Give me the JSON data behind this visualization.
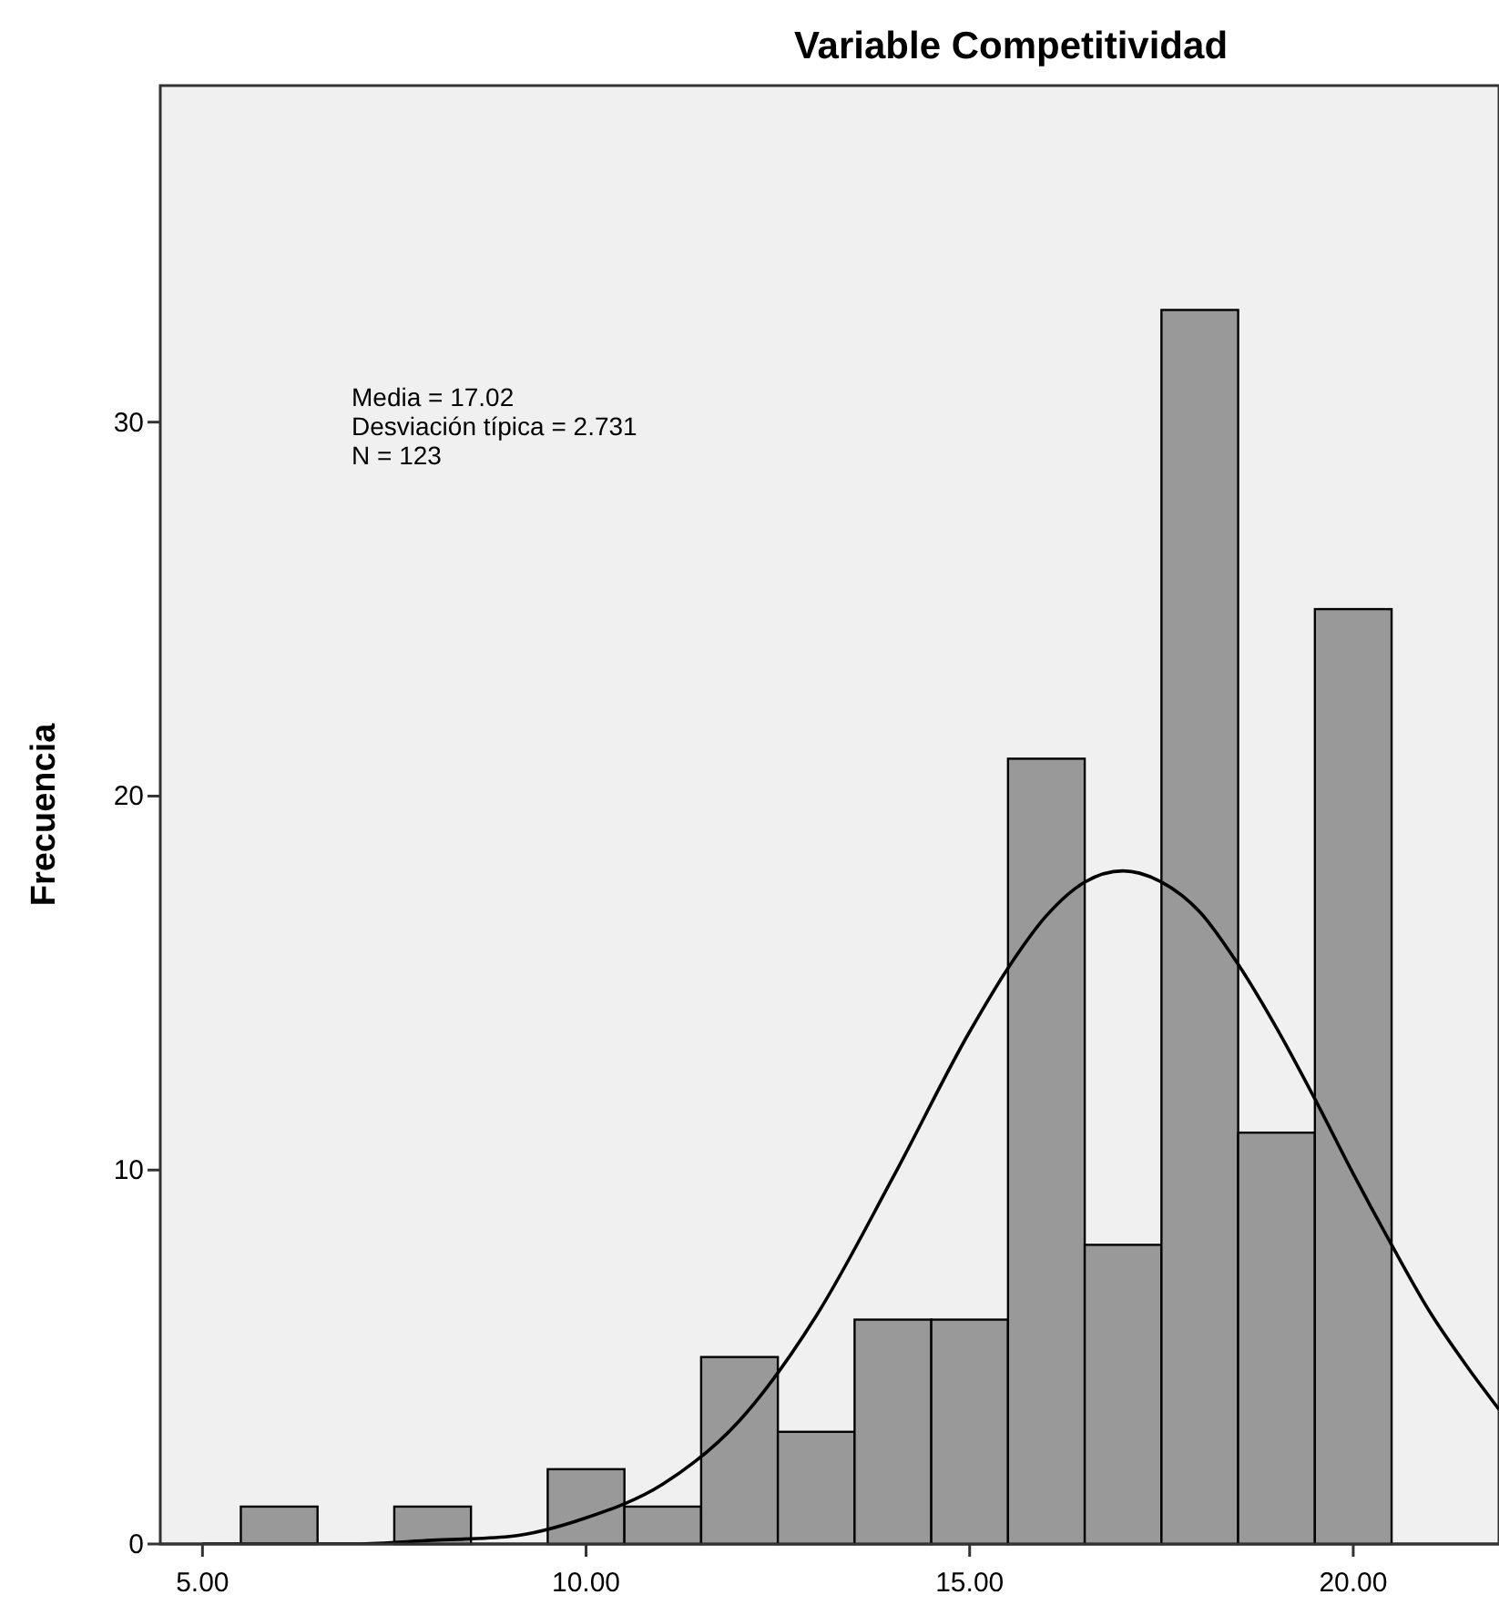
{
  "chart_data": {
    "type": "histogram",
    "title": "Variable Competitividad",
    "ylabel": "Frecuencia",
    "annotations": [
      "Media = 17.02",
      "Desviación típica = 2.731",
      "N = 123"
    ],
    "xlim": [
      4.45,
      21.9
    ],
    "xticks": [
      {
        "value": 5,
        "label": "5.00"
      },
      {
        "value": 10,
        "label": "10.00"
      },
      {
        "value": 15,
        "label": "15.00"
      },
      {
        "value": 20,
        "label": "20.00"
      }
    ],
    "ylim": [
      0,
      39
    ],
    "yticks": [
      0,
      10,
      20,
      30
    ],
    "grid": false,
    "series": [
      {
        "type": "histogram",
        "color": "#999999",
        "bins": [
          5.5,
          6.5,
          7.5,
          8.5,
          9.5,
          10.5,
          11.5,
          12.5,
          13.5,
          14.5,
          15.5,
          16.5,
          17.5,
          18.5,
          19.5,
          20.5
        ],
        "values": [
          1,
          0,
          1,
          0,
          2,
          1,
          5,
          3,
          6,
          6,
          21,
          8,
          33,
          11,
          25
        ]
      },
      {
        "type": "line",
        "color": "#000000",
        "x": [
          5,
          6,
          7,
          8,
          9,
          10,
          11,
          12,
          13,
          14,
          15,
          15.5,
          16,
          16.5,
          17,
          17.5,
          18,
          18.5,
          19,
          19.5,
          20,
          20.5,
          21,
          21.5,
          21.9
        ],
        "values": [
          0,
          0,
          0,
          0.1,
          0.2,
          0.7,
          1.6,
          3.3,
          6.1,
          9.8,
          13.7,
          15.4,
          16.8,
          17.7,
          18,
          17.7,
          16.9,
          15.5,
          13.8,
          11.9,
          9.9,
          8,
          6.2,
          4.7,
          3.6
        ]
      }
    ]
  }
}
